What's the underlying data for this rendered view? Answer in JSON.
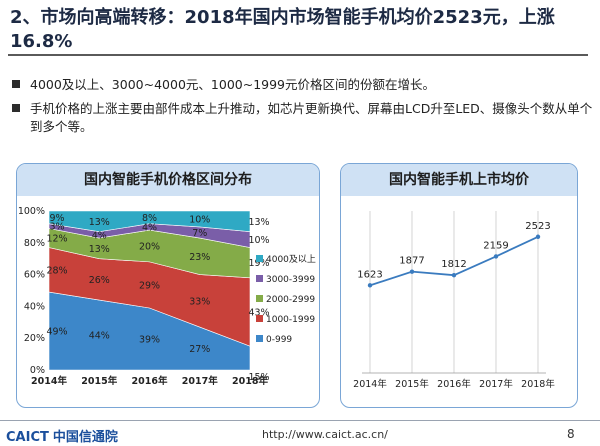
{
  "slide": {
    "title": "2、市场向高端转移：2018年国内市场智能手机均价2523元，上涨16.8%",
    "bullets": [
      "4000及以上、3000~4000元、1000~1999元价格区间的份额在增长。",
      "手机价格的上涨主要由部件成本上升推动，如芯片更新换代、屏幕由LCD升至LED、摄像头个数从单个到多个等。"
    ]
  },
  "chart_data": [
    {
      "type": "area",
      "stacked": true,
      "title": "国内智能手机价格区间分布",
      "categories": [
        "2014年",
        "2015年",
        "2016年",
        "2017年",
        "2018年"
      ],
      "yticks": [
        "0%",
        "20%",
        "40%",
        "60%",
        "80%",
        "100%"
      ],
      "ylim": [
        0,
        100
      ],
      "series": [
        {
          "name": "0-999",
          "color": "#3d87c9",
          "values": [
            49,
            44,
            39,
            27,
            15
          ],
          "labels": [
            "49%",
            "44%",
            "39%",
            "27%",
            "15%"
          ]
        },
        {
          "name": "1000-1999",
          "color": "#c8413a",
          "values": [
            28,
            26,
            29,
            33,
            43
          ],
          "labels": [
            "28%",
            "26%",
            "29%",
            "33%",
            "43%"
          ]
        },
        {
          "name": "2000-2999",
          "color": "#84ab48",
          "values": [
            12,
            13,
            20,
            23,
            19
          ],
          "labels": [
            "12%",
            "13%",
            "20%",
            "23%",
            "19%"
          ]
        },
        {
          "name": "3000-3999",
          "color": "#7a5ea8",
          "values": [
            3,
            4,
            4,
            7,
            10
          ],
          "labels": [
            "3%",
            "4%",
            "4%",
            "7%",
            "10%"
          ]
        },
        {
          "name": "4000及以上",
          "color": "#2fa9c4",
          "values": [
            9,
            13,
            8,
            10,
            13
          ],
          "labels": [
            "9%",
            "13%",
            "8%",
            "10%",
            "13%"
          ]
        }
      ],
      "legend_order": [
        "4000及以上",
        "3000-3999",
        "2000-2999",
        "1000-1999",
        "0-999"
      ],
      "legend": "right"
    },
    {
      "type": "line",
      "title": "国内智能手机上市均价",
      "categories": [
        "2014年",
        "2015年",
        "2016年",
        "2017年",
        "2018年"
      ],
      "values": [
        1623,
        1877,
        1812,
        2159,
        2523
      ],
      "labels": [
        "1623",
        "1877",
        "1812",
        "2159",
        "2523"
      ],
      "ylim": [
        0,
        3000
      ],
      "color": "#3a7bbf"
    }
  ],
  "footer": {
    "logo_text": "CAICT",
    "logo_cn": "中国信通院",
    "url": "http://www.caict.ac.cn/",
    "page_number": "8"
  }
}
